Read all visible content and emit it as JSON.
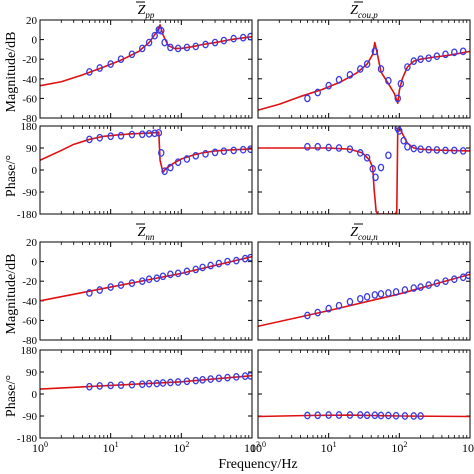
{
  "figure": {
    "xlabel": "Frequency/Hz",
    "ylabel_mag": "Magnitude/dB",
    "ylabel_phase": "Phase/°"
  },
  "colors": {
    "model_line": "#e01010",
    "measured_marker": "#3a3ae0",
    "axes": "#000000"
  },
  "chart_data": [
    {
      "type": "line",
      "title": "Z_pp",
      "x_scale": "log",
      "xlim": [
        1,
        1000
      ],
      "xticks": [
        "10^0",
        "10^1",
        "10^2",
        "10^3"
      ],
      "magnitude": {
        "ylabel": "Magnitude/dB",
        "ylim": [
          -80,
          20
        ],
        "yticks": [
          20,
          0,
          -20,
          -40,
          -60,
          -80
        ],
        "model_line": {
          "x": [
            1,
            2,
            4,
            8,
            15,
            25,
            35,
            45,
            50,
            55,
            65,
            80,
            100,
            150,
            200,
            300,
            500,
            1000
          ],
          "y": [
            -47,
            -43,
            -36,
            -28,
            -20,
            -12,
            -3,
            8,
            15,
            5,
            -6,
            -9,
            -9,
            -7,
            -5,
            -3,
            0,
            3
          ]
        },
        "measured": {
          "x": [
            5,
            7,
            10,
            14,
            20,
            28,
            35,
            42,
            48,
            52,
            58,
            70,
            90,
            120,
            160,
            220,
            300,
            400,
            550,
            750,
            950
          ],
          "y": [
            -33,
            -29,
            -25,
            -20,
            -15,
            -9,
            -3,
            4,
            10,
            9,
            -3,
            -8,
            -9,
            -8,
            -7,
            -5,
            -3,
            -1,
            1,
            2,
            3
          ]
        }
      },
      "phase": {
        "ylabel": "Phase/°",
        "ylim": [
          -180,
          180
        ],
        "yticks": [
          180,
          90,
          0,
          -90,
          -180
        ],
        "model_line": {
          "x": [
            1,
            2,
            3,
            5,
            8,
            12,
            20,
            30,
            40,
            48,
            50,
            55,
            60,
            80,
            100,
            150,
            200,
            300,
            500,
            1000
          ],
          "y": [
            40,
            80,
            105,
            125,
            138,
            143,
            148,
            150,
            152,
            155,
            40,
            -10,
            5,
            30,
            45,
            62,
            70,
            78,
            82,
            86
          ]
        },
        "measured": {
          "x": [
            5,
            7,
            10,
            14,
            20,
            28,
            35,
            42,
            48,
            52,
            58,
            70,
            90,
            120,
            160,
            220,
            300,
            400,
            550,
            750,
            950
          ],
          "y": [
            125,
            132,
            138,
            140,
            145,
            146,
            148,
            150,
            152,
            70,
            -5,
            10,
            32,
            45,
            58,
            66,
            72,
            77,
            80,
            83,
            85
          ]
        }
      }
    },
    {
      "type": "line",
      "title": "Z_cou,p",
      "x_scale": "log",
      "xlim": [
        1,
        1000
      ],
      "xticks": [
        "10^0",
        "10^1",
        "10^2",
        "10^3"
      ],
      "magnitude": {
        "ylabel": "Magnitude/dB",
        "ylim": [
          -80,
          20
        ],
        "yticks": [
          20,
          0,
          -20,
          -40,
          -60,
          -80
        ],
        "model_line": {
          "x": [
            1,
            2,
            4,
            8,
            15,
            25,
            35,
            42,
            45,
            48,
            55,
            70,
            85,
            95,
            100,
            110,
            130,
            160,
            200,
            300,
            500,
            1000
          ],
          "y": [
            -72,
            -66,
            -58,
            -51,
            -43,
            -34,
            -25,
            -15,
            -3,
            -12,
            -33,
            -45,
            -55,
            -65,
            -52,
            -40,
            -28,
            -22,
            -20,
            -18,
            -16,
            -12
          ]
        },
        "measured": {
          "x": [
            5,
            7,
            10,
            14,
            20,
            28,
            35,
            45,
            55,
            70,
            95,
            105,
            130,
            160,
            200,
            260,
            340,
            450,
            600,
            800
          ],
          "y": [
            -60,
            -54,
            -47,
            -41,
            -36,
            -30,
            -25,
            -12,
            -30,
            -42,
            -60,
            -45,
            -28,
            -22,
            -20,
            -19,
            -17,
            -15,
            -13,
            -12
          ]
        }
      },
      "phase": {
        "ylabel": "Phase/°",
        "ylim": [
          -180,
          180
        ],
        "yticks": [
          180,
          90,
          0,
          -90,
          -180
        ],
        "model_line": {
          "x": [
            1,
            3,
            10,
            20,
            30,
            38,
            42,
            44,
            47,
            50,
            55,
            70,
            85,
            92,
            95,
            100,
            110,
            130,
            160,
            200,
            300,
            500,
            1000
          ],
          "y": [
            90,
            90,
            90,
            85,
            70,
            40,
            10,
            -80,
            -170,
            -180,
            -180,
            -180,
            -180,
            -175,
            170,
            175,
            150,
            110,
            90,
            85,
            82,
            80,
            78
          ]
        },
        "measured": {
          "x": [
            5,
            7,
            10,
            14,
            20,
            28,
            35,
            42,
            46,
            55,
            70,
            95,
            100,
            115,
            130,
            160,
            200,
            260,
            340,
            450,
            600,
            800
          ],
          "y": [
            95,
            95,
            92,
            90,
            85,
            70,
            50,
            5,
            -30,
            10,
            60,
            170,
            160,
            120,
            95,
            88,
            85,
            83,
            82,
            80,
            80,
            78
          ]
        }
      }
    },
    {
      "type": "line",
      "title": "Z_nn",
      "x_scale": "log",
      "xlim": [
        1,
        1000
      ],
      "xticks": [
        "10^0",
        "10^1",
        "10^2",
        "10^3"
      ],
      "magnitude": {
        "ylabel": "Magnitude/dB",
        "ylim": [
          -80,
          20
        ],
        "yticks": [
          20,
          0,
          -20,
          -40,
          -60,
          -80
        ],
        "model_line": {
          "x": [
            1,
            10,
            100,
            1000
          ],
          "y": [
            -40,
            -26,
            -12,
            5
          ]
        },
        "measured": {
          "x": [
            5,
            7,
            10,
            14,
            20,
            28,
            35,
            45,
            55,
            70,
            90,
            120,
            160,
            200,
            260,
            340,
            450,
            600,
            800,
            950
          ],
          "y": [
            -32,
            -29,
            -26,
            -24,
            -22,
            -20,
            -18,
            -17,
            -15,
            -13,
            -12,
            -10,
            -8,
            -6,
            -4,
            -2,
            0,
            1,
            3,
            4
          ]
        }
      },
      "phase": {
        "ylabel": "Phase/°",
        "ylim": [
          -180,
          180
        ],
        "yticks": [
          180,
          90,
          0,
          -90,
          -180
        ],
        "model_line": {
          "x": [
            1,
            10,
            100,
            1000
          ],
          "y": [
            20,
            35,
            50,
            75
          ]
        },
        "measured": {
          "x": [
            5,
            7,
            10,
            14,
            20,
            28,
            35,
            45,
            55,
            70,
            90,
            120,
            160,
            200,
            260,
            340,
            450,
            600,
            800,
            950
          ],
          "y": [
            30,
            33,
            35,
            36,
            38,
            40,
            42,
            43,
            45,
            47,
            49,
            52,
            55,
            58,
            61,
            64,
            67,
            70,
            73,
            74
          ]
        }
      }
    },
    {
      "type": "line",
      "title": "Z_cou,n",
      "x_scale": "log",
      "xlim": [
        1,
        1000
      ],
      "xticks": [
        "10^0",
        "10^1",
        "10^2",
        "10^3"
      ],
      "magnitude": {
        "ylabel": "Magnitude/dB",
        "ylim": [
          -80,
          20
        ],
        "yticks": [
          20,
          0,
          -20,
          -40,
          -60,
          -80
        ],
        "model_line": {
          "x": [
            1,
            10,
            100,
            1000
          ],
          "y": [
            -66,
            -50,
            -33,
            -13
          ]
        },
        "measured": {
          "x": [
            5,
            7,
            10,
            14,
            20,
            28,
            35,
            45,
            55,
            70,
            90,
            120,
            160,
            200,
            260,
            340,
            450,
            600,
            800,
            950
          ],
          "y": [
            -55,
            -52,
            -48,
            -45,
            -41,
            -38,
            -36,
            -34,
            -33,
            -32,
            -31,
            -29,
            -27,
            -26,
            -24,
            -22,
            -20,
            -18,
            -16,
            -14
          ]
        }
      },
      "phase": {
        "ylabel": "Phase/°",
        "ylim": [
          -180,
          180
        ],
        "yticks": [
          180,
          90,
          0,
          -90,
          -180
        ],
        "model_line": {
          "x": [
            1,
            5,
            20,
            40,
            100,
            300,
            1000
          ],
          "y": [
            -92,
            -88,
            -86,
            -88,
            -90,
            -91,
            -92
          ]
        },
        "measured": {
          "x": [
            5,
            7,
            10,
            14,
            20,
            28,
            35,
            45,
            55,
            70,
            90,
            120,
            160,
            200
          ],
          "y": [
            -88,
            -87,
            -86,
            -86,
            -86,
            -86,
            -87,
            -87,
            -88,
            -88,
            -89,
            -90,
            -90,
            -90
          ]
        }
      }
    }
  ]
}
